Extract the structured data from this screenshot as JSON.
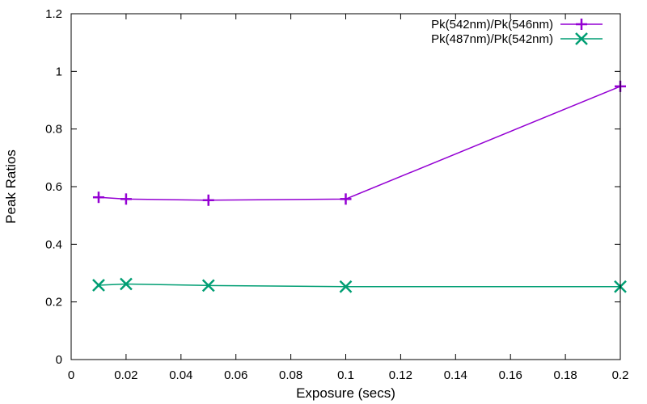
{
  "chart_data": {
    "type": "line",
    "title": "",
    "xlabel": "Exposure (secs)",
    "ylabel": "Peak Ratios",
    "xlim": [
      0,
      0.2
    ],
    "ylim": [
      0,
      1.2
    ],
    "grid": false,
    "legend_position": "top-right",
    "x_ticks": [
      {
        "value": 0,
        "label": "0"
      },
      {
        "value": 0.02,
        "label": "0.02"
      },
      {
        "value": 0.04,
        "label": "0.04"
      },
      {
        "value": 0.06,
        "label": "0.06"
      },
      {
        "value": 0.08,
        "label": "0.08"
      },
      {
        "value": 0.1,
        "label": "0.1"
      },
      {
        "value": 0.12,
        "label": "0.12"
      },
      {
        "value": 0.14,
        "label": "0.14"
      },
      {
        "value": 0.16,
        "label": "0.16"
      },
      {
        "value": 0.18,
        "label": "0.18"
      },
      {
        "value": 0.2,
        "label": "0.2"
      }
    ],
    "y_ticks": [
      {
        "value": 0,
        "label": "0"
      },
      {
        "value": 0.2,
        "label": "0.2"
      },
      {
        "value": 0.4,
        "label": "0.4"
      },
      {
        "value": 0.6,
        "label": "0.6"
      },
      {
        "value": 0.8,
        "label": "0.8"
      },
      {
        "value": 1,
        "label": "1"
      },
      {
        "value": 1.2,
        "label": "1.2"
      }
    ],
    "series": [
      {
        "name": "Pk(542nm)/Pk(546nm)",
        "color": "#9400d3",
        "marker": "plus",
        "x": [
          0.01,
          0.02,
          0.05,
          0.1,
          0.2
        ],
        "y": [
          0.563,
          0.557,
          0.553,
          0.557,
          0.948
        ]
      },
      {
        "name": "Pk(487nm)/Pk(542nm)",
        "color": "#009e73",
        "marker": "cross",
        "x": [
          0.01,
          0.02,
          0.05,
          0.1,
          0.2
        ],
        "y": [
          0.258,
          0.262,
          0.257,
          0.253,
          0.253
        ]
      }
    ]
  }
}
